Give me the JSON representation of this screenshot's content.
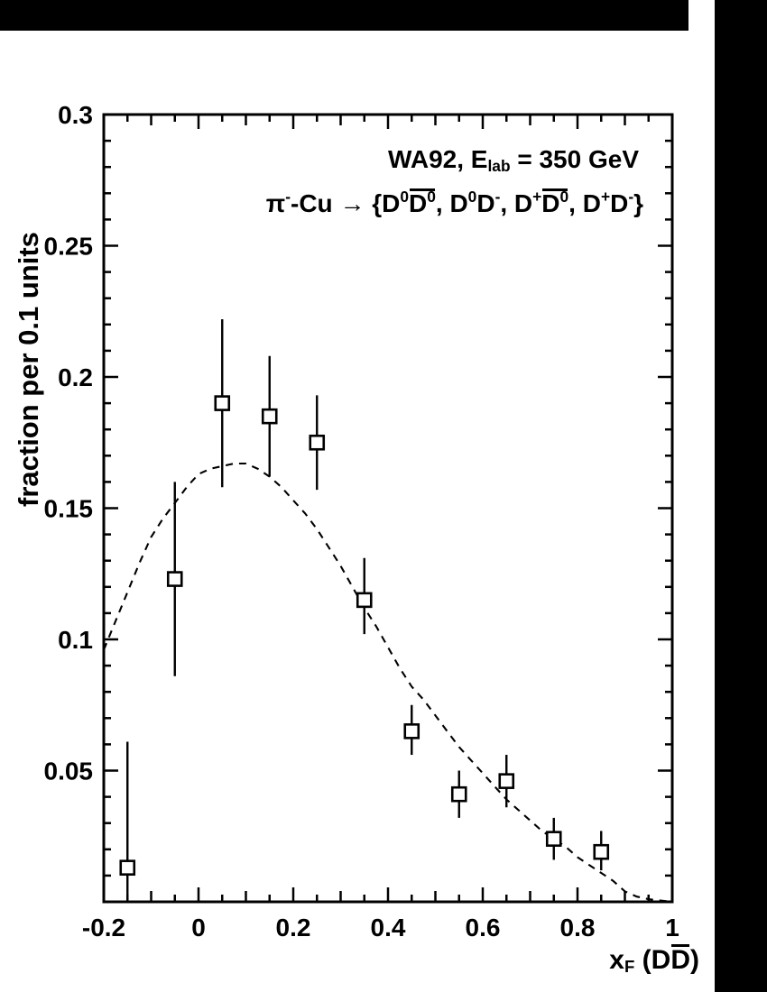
{
  "page": {
    "background": "#ffffff",
    "ink_color": "#000000",
    "scan_bar_color": "#000000"
  },
  "chart_data": {
    "type": "scatter",
    "title_segments": [
      {
        "t": "WA92, E"
      },
      {
        "t": "lab",
        "k": "sub"
      },
      {
        "t": " = 350 GeV"
      }
    ],
    "reaction_segments": [
      {
        "t": "π"
      },
      {
        "t": "-",
        "k": "sup"
      },
      {
        "t": "-Cu "
      },
      {
        "t": "→ {D"
      },
      {
        "t": "0",
        "k": "sup"
      },
      {
        "bar": [
          {
            "t": "D"
          },
          {
            "t": "0",
            "k": "sup"
          }
        ]
      },
      {
        "t": ", D"
      },
      {
        "t": "0",
        "k": "sup"
      },
      {
        "t": "D"
      },
      {
        "t": "-",
        "k": "sup"
      },
      {
        "t": ", D"
      },
      {
        "t": "+",
        "k": "sup"
      },
      {
        "bar": [
          {
            "t": "D"
          },
          {
            "t": "0",
            "k": "sup"
          }
        ]
      },
      {
        "t": ", D"
      },
      {
        "t": "+",
        "k": "sup"
      },
      {
        "t": "D"
      },
      {
        "t": "-",
        "k": "sup"
      },
      {
        "t": "}"
      }
    ],
    "ylabel": "fraction per 0.1 units",
    "xlabel_segments": [
      {
        "t": "x"
      },
      {
        "t": "F",
        "k": "sub"
      },
      {
        "t": " (D"
      },
      {
        "bar": [
          {
            "t": "D"
          }
        ]
      },
      {
        "t": ")"
      }
    ],
    "xlim": [
      -0.2,
      1
    ],
    "ylim": [
      0,
      0.3
    ],
    "x_major_step": 0.2,
    "x_mid_step": 0.1,
    "x_minor_step": 0.05,
    "y_major_step": 0.05,
    "y_minor_step": 0.01,
    "grid": false,
    "legend": "none",
    "x_tick_labels": [
      {
        "v": -0.2,
        "label": "-0.2"
      },
      {
        "v": 0,
        "label": "0"
      },
      {
        "v": 0.2,
        "label": "0.2"
      },
      {
        "v": 0.4,
        "label": "0.4"
      },
      {
        "v": 0.6,
        "label": "0.6"
      },
      {
        "v": 0.8,
        "label": "0.8"
      },
      {
        "v": 1,
        "label": "1"
      }
    ],
    "y_tick_labels": [
      {
        "v": 0.05,
        "label": "0.05"
      },
      {
        "v": 0.1,
        "label": "0.1"
      },
      {
        "v": 0.15,
        "label": "0.15"
      },
      {
        "v": 0.2,
        "label": "0.2"
      },
      {
        "v": 0.25,
        "label": "0.25"
      },
      {
        "v": 0.3,
        "label": "0.3"
      }
    ],
    "series": {
      "data": {
        "name": "wa92-data-points",
        "marker": "open-square",
        "x": [
          -0.15,
          -0.05,
          0.05,
          0.15,
          0.25,
          0.35,
          0.45,
          0.55,
          0.65,
          0.75,
          0.85
        ],
        "y": [
          0.013,
          0.123,
          0.19,
          0.185,
          0.175,
          0.115,
          0.065,
          0.041,
          0.046,
          0.024,
          0.019
        ],
        "yerr_up": [
          0.048,
          0.037,
          0.032,
          0.023,
          0.018,
          0.016,
          0.01,
          0.009,
          0.01,
          0.008,
          0.008
        ],
        "yerr_down": [
          0.012,
          0.037,
          0.032,
          0.023,
          0.018,
          0.013,
          0.009,
          0.009,
          0.01,
          0.008,
          0.007
        ]
      },
      "model": {
        "name": "model-curve",
        "style": "dashed",
        "points": [
          [
            -0.2,
            0.096
          ],
          [
            -0.175,
            0.107
          ],
          [
            -0.15,
            0.118
          ],
          [
            -0.125,
            0.129
          ],
          [
            -0.1,
            0.139
          ],
          [
            -0.075,
            0.146
          ],
          [
            -0.05,
            0.152
          ],
          [
            -0.025,
            0.158
          ],
          [
            0,
            0.163
          ],
          [
            0.025,
            0.165
          ],
          [
            0.05,
            0.166
          ],
          [
            0.075,
            0.167
          ],
          [
            0.1,
            0.167
          ],
          [
            0.125,
            0.165
          ],
          [
            0.15,
            0.162
          ],
          [
            0.175,
            0.158
          ],
          [
            0.2,
            0.153
          ],
          [
            0.225,
            0.148
          ],
          [
            0.25,
            0.142
          ],
          [
            0.275,
            0.135
          ],
          [
            0.3,
            0.128
          ],
          [
            0.325,
            0.12
          ],
          [
            0.35,
            0.112
          ],
          [
            0.375,
            0.105
          ],
          [
            0.4,
            0.097
          ],
          [
            0.425,
            0.089
          ],
          [
            0.45,
            0.082
          ],
          [
            0.475,
            0.077
          ],
          [
            0.5,
            0.071
          ],
          [
            0.525,
            0.065
          ],
          [
            0.55,
            0.059
          ],
          [
            0.575,
            0.054
          ],
          [
            0.6,
            0.049
          ],
          [
            0.625,
            0.044
          ],
          [
            0.65,
            0.039
          ],
          [
            0.675,
            0.035
          ],
          [
            0.7,
            0.031
          ],
          [
            0.725,
            0.027
          ],
          [
            0.75,
            0.024
          ],
          [
            0.775,
            0.021
          ],
          [
            0.8,
            0.017
          ],
          [
            0.825,
            0.014
          ],
          [
            0.85,
            0.011
          ],
          [
            0.875,
            0.008
          ],
          [
            0.9,
            0.004
          ],
          [
            0.925,
            0.002
          ],
          [
            0.95,
            0.001
          ],
          [
            1,
            0
          ]
        ]
      }
    }
  }
}
